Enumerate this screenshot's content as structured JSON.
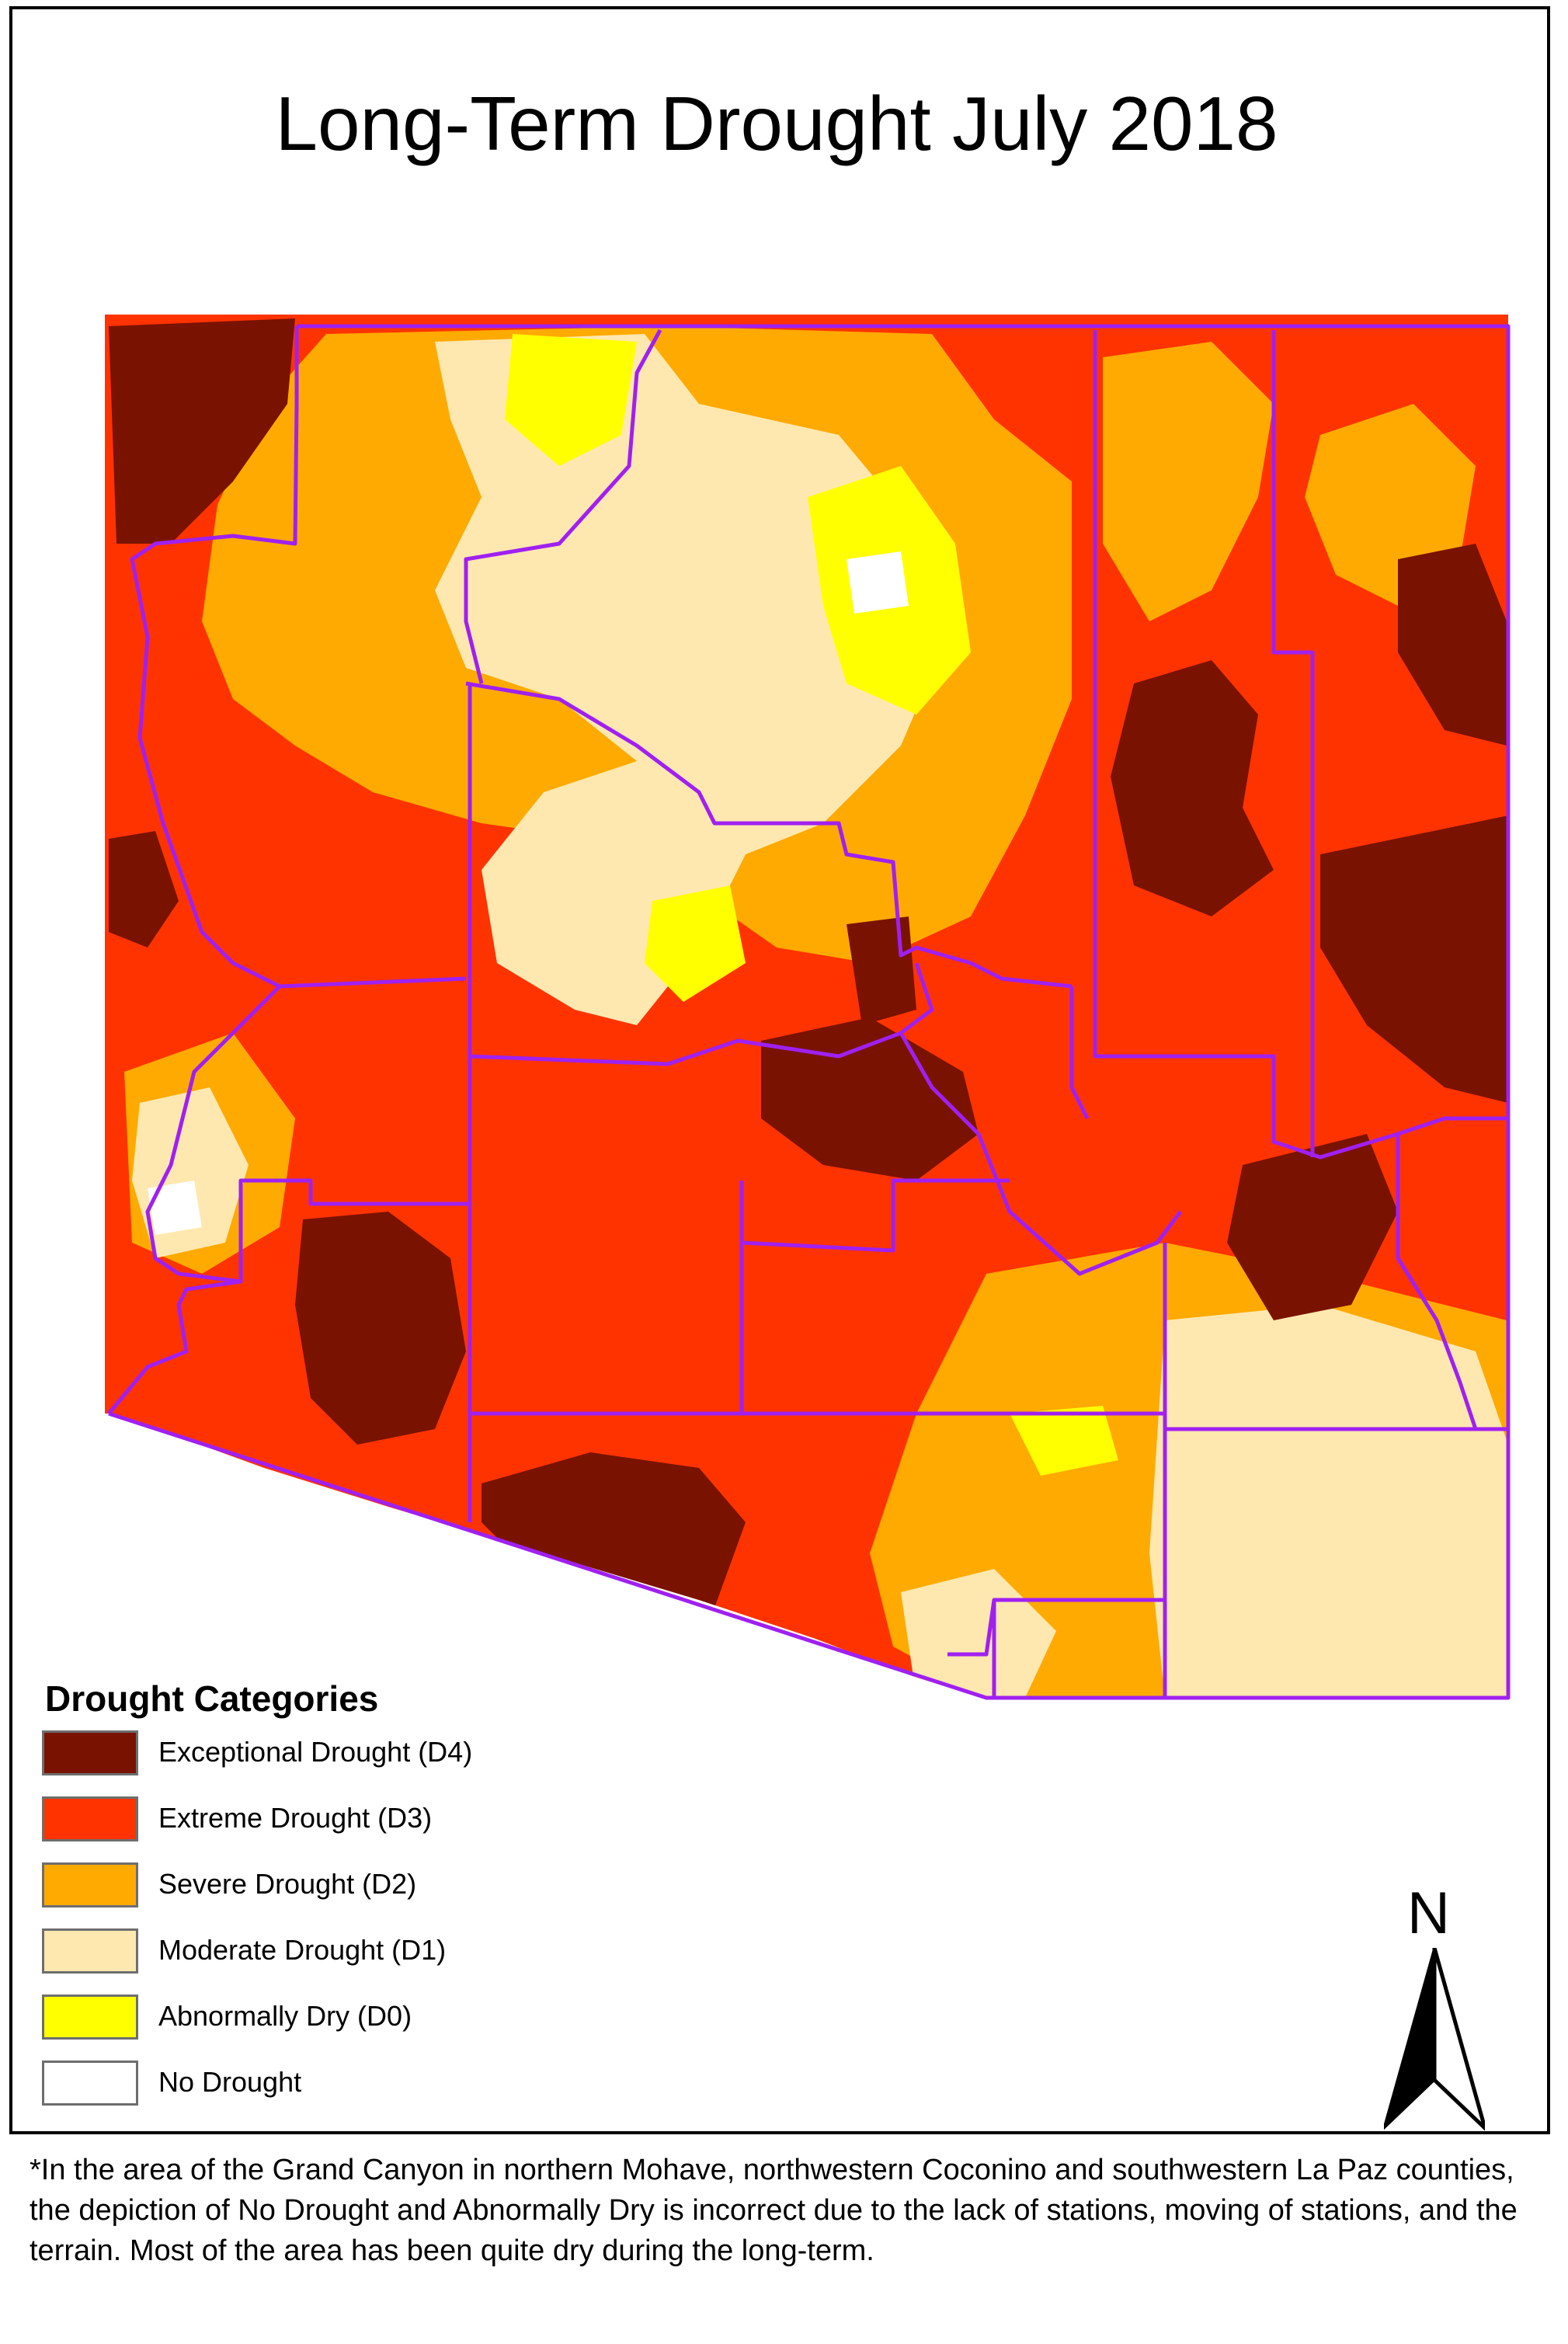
{
  "title": "Long-Term Drought July 2018",
  "legend": {
    "title": "Drought Categories",
    "items": [
      {
        "label": "Exceptional Drought (D4)",
        "color": "#7a1200"
      },
      {
        "label": "Extreme Drought (D3)",
        "color": "#ff3300"
      },
      {
        "label": "Severe Drought (D2)",
        "color": "#ffaa00"
      },
      {
        "label": "Moderate Drought (D1)",
        "color": "#ffe8b0"
      },
      {
        "label": "Abnormally Dry (D0)",
        "color": "#ffff00"
      },
      {
        "label": "No Drought",
        "color": "#ffffff"
      }
    ]
  },
  "north_arrow": {
    "letter": "N",
    "icon": "north-arrow-icon"
  },
  "map": {
    "region": "Arizona",
    "boundary_color": "#a020f0",
    "dominant_category": "Extreme Drought (D3)"
  },
  "footnote": "*In the area of the Grand Canyon in northern Mohave, northwestern Coconino and southwestern La Paz counties, the depiction of No Drought and Abnormally Dry is incorrect due to the lack of stations, moving of stations, and the terrain. Most of the area has been quite dry during the long-term."
}
